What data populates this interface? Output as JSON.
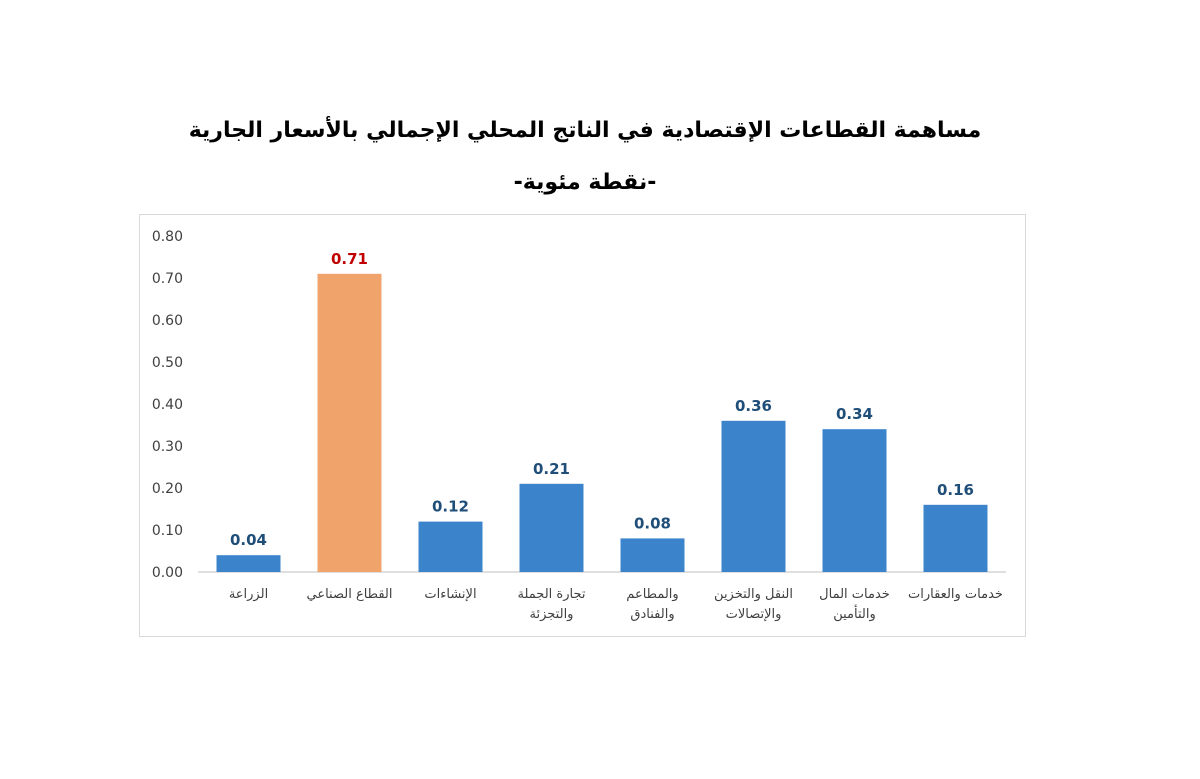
{
  "chart_data": {
    "type": "bar",
    "title": "مساهمة القطاعات الإقتصادية في الناتج المحلي الإجمالي بالأسعار الجارية",
    "subtitle": "-نقطة مئوية-",
    "categories": [
      [
        "الزراعة"
      ],
      [
        "القطاع الصناعي"
      ],
      [
        "الإنشاءات"
      ],
      [
        "تجارة الجملة",
        "والتجزئة"
      ],
      [
        "والمطاعم",
        "والفنادق"
      ],
      [
        "النقل والتخزين",
        "والإتصالات"
      ],
      [
        "خدمات المال",
        "والتأمين"
      ],
      [
        "خدمات والعقارات"
      ]
    ],
    "values": [
      0.04,
      0.71,
      0.12,
      0.21,
      0.08,
      0.36,
      0.34,
      0.16
    ],
    "value_labels": [
      "0.04",
      "0.71",
      "0.12",
      "0.21",
      "0.08",
      "0.36",
      "0.34",
      "0.16"
    ],
    "ylim": [
      0,
      0.8
    ],
    "yticks": [
      "0.00",
      "0.10",
      "0.20",
      "0.30",
      "0.40",
      "0.50",
      "0.60",
      "0.70",
      "0.80"
    ],
    "grid": false,
    "highlight_index": 1,
    "colors": {
      "bar": "#3b84cc",
      "highlight_bar": "#f0a46c",
      "label": "#1f4e79",
      "highlight_label": "#c00000",
      "axis": "#bfbfbf",
      "tick_text": "#404040"
    }
  }
}
